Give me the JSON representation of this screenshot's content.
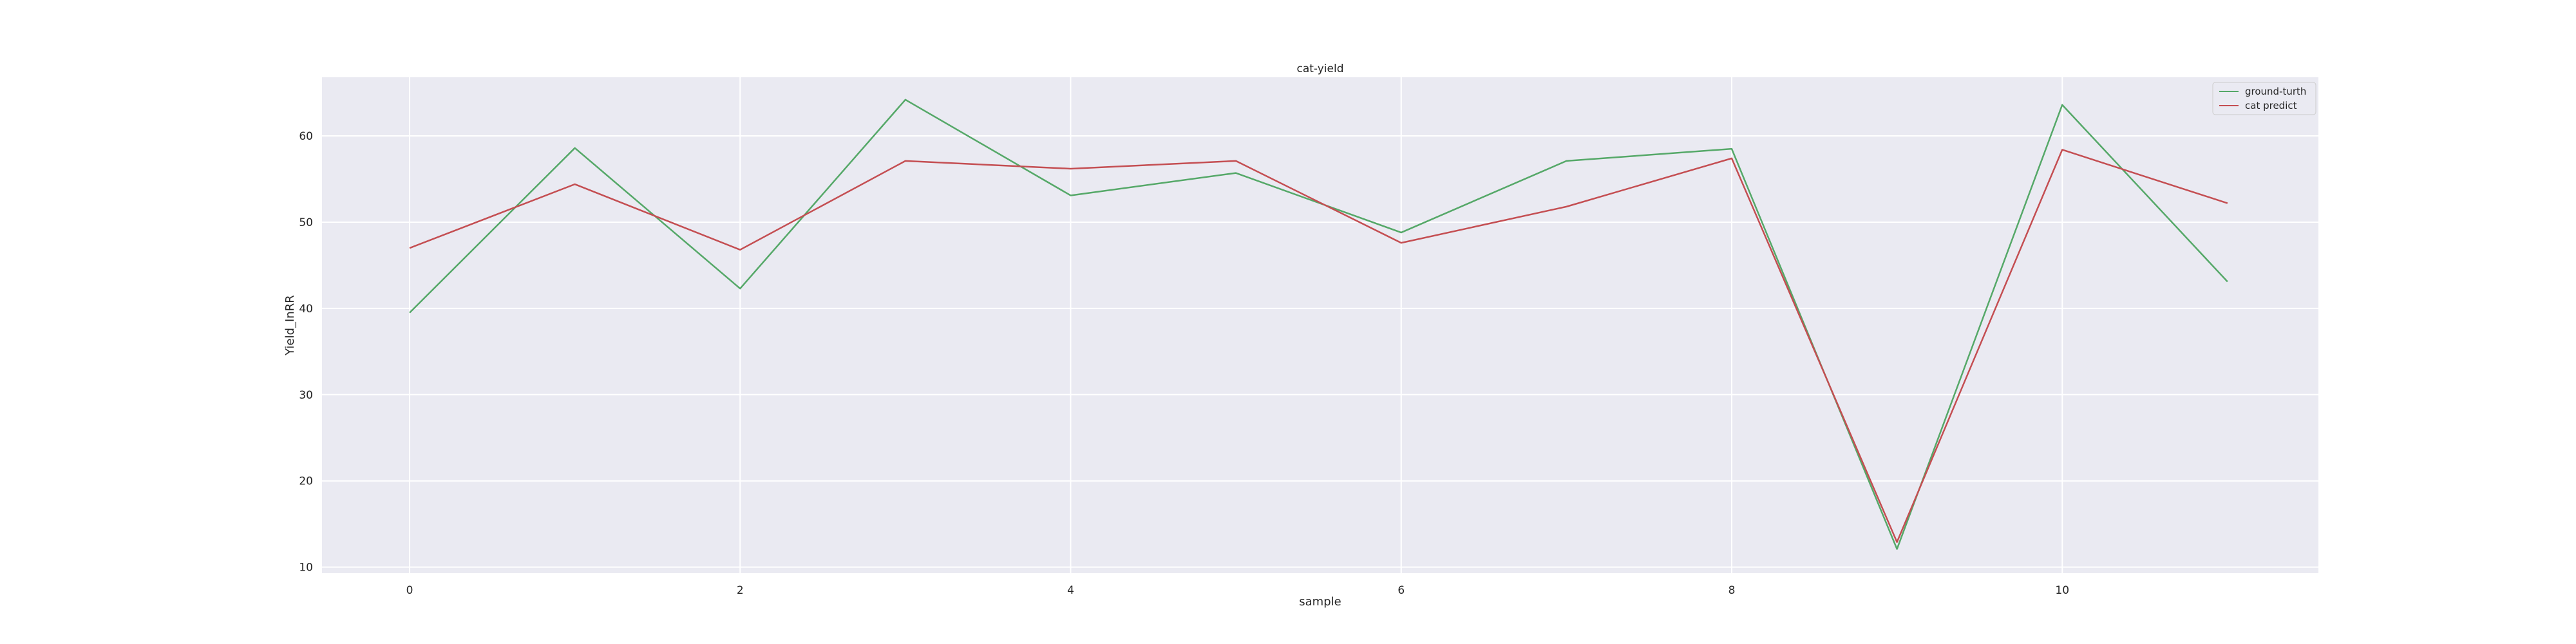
{
  "chart_data": {
    "type": "line",
    "title": "cat-yield",
    "xlabel": "sample",
    "ylabel": "Yield_InRR",
    "x": [
      0,
      1,
      2,
      3,
      4,
      5,
      6,
      7,
      8,
      9,
      10,
      11
    ],
    "xlim": [
      -0.53,
      11.55
    ],
    "ylim": [
      9.3,
      66.8
    ],
    "xticks": [
      0,
      2,
      4,
      6,
      8,
      10
    ],
    "yticks": [
      10,
      20,
      30,
      40,
      50,
      60
    ],
    "grid": true,
    "legend_position": "top-right",
    "colors": {
      "background": "#eaeaf2",
      "grid": "#ffffff",
      "ground_truth": "#55a868",
      "cat_predict": "#c44e52"
    },
    "series": [
      {
        "name": "ground-turth",
        "color": "#55a868",
        "values": [
          39.5,
          58.6,
          42.3,
          64.2,
          53.1,
          55.7,
          48.8,
          57.1,
          58.5,
          12.1,
          63.6,
          43.1
        ]
      },
      {
        "name": "cat predict",
        "color": "#c44e52",
        "values": [
          47.0,
          54.4,
          46.8,
          57.1,
          56.2,
          57.1,
          47.6,
          51.8,
          57.4,
          12.9,
          58.4,
          52.2
        ]
      }
    ]
  }
}
